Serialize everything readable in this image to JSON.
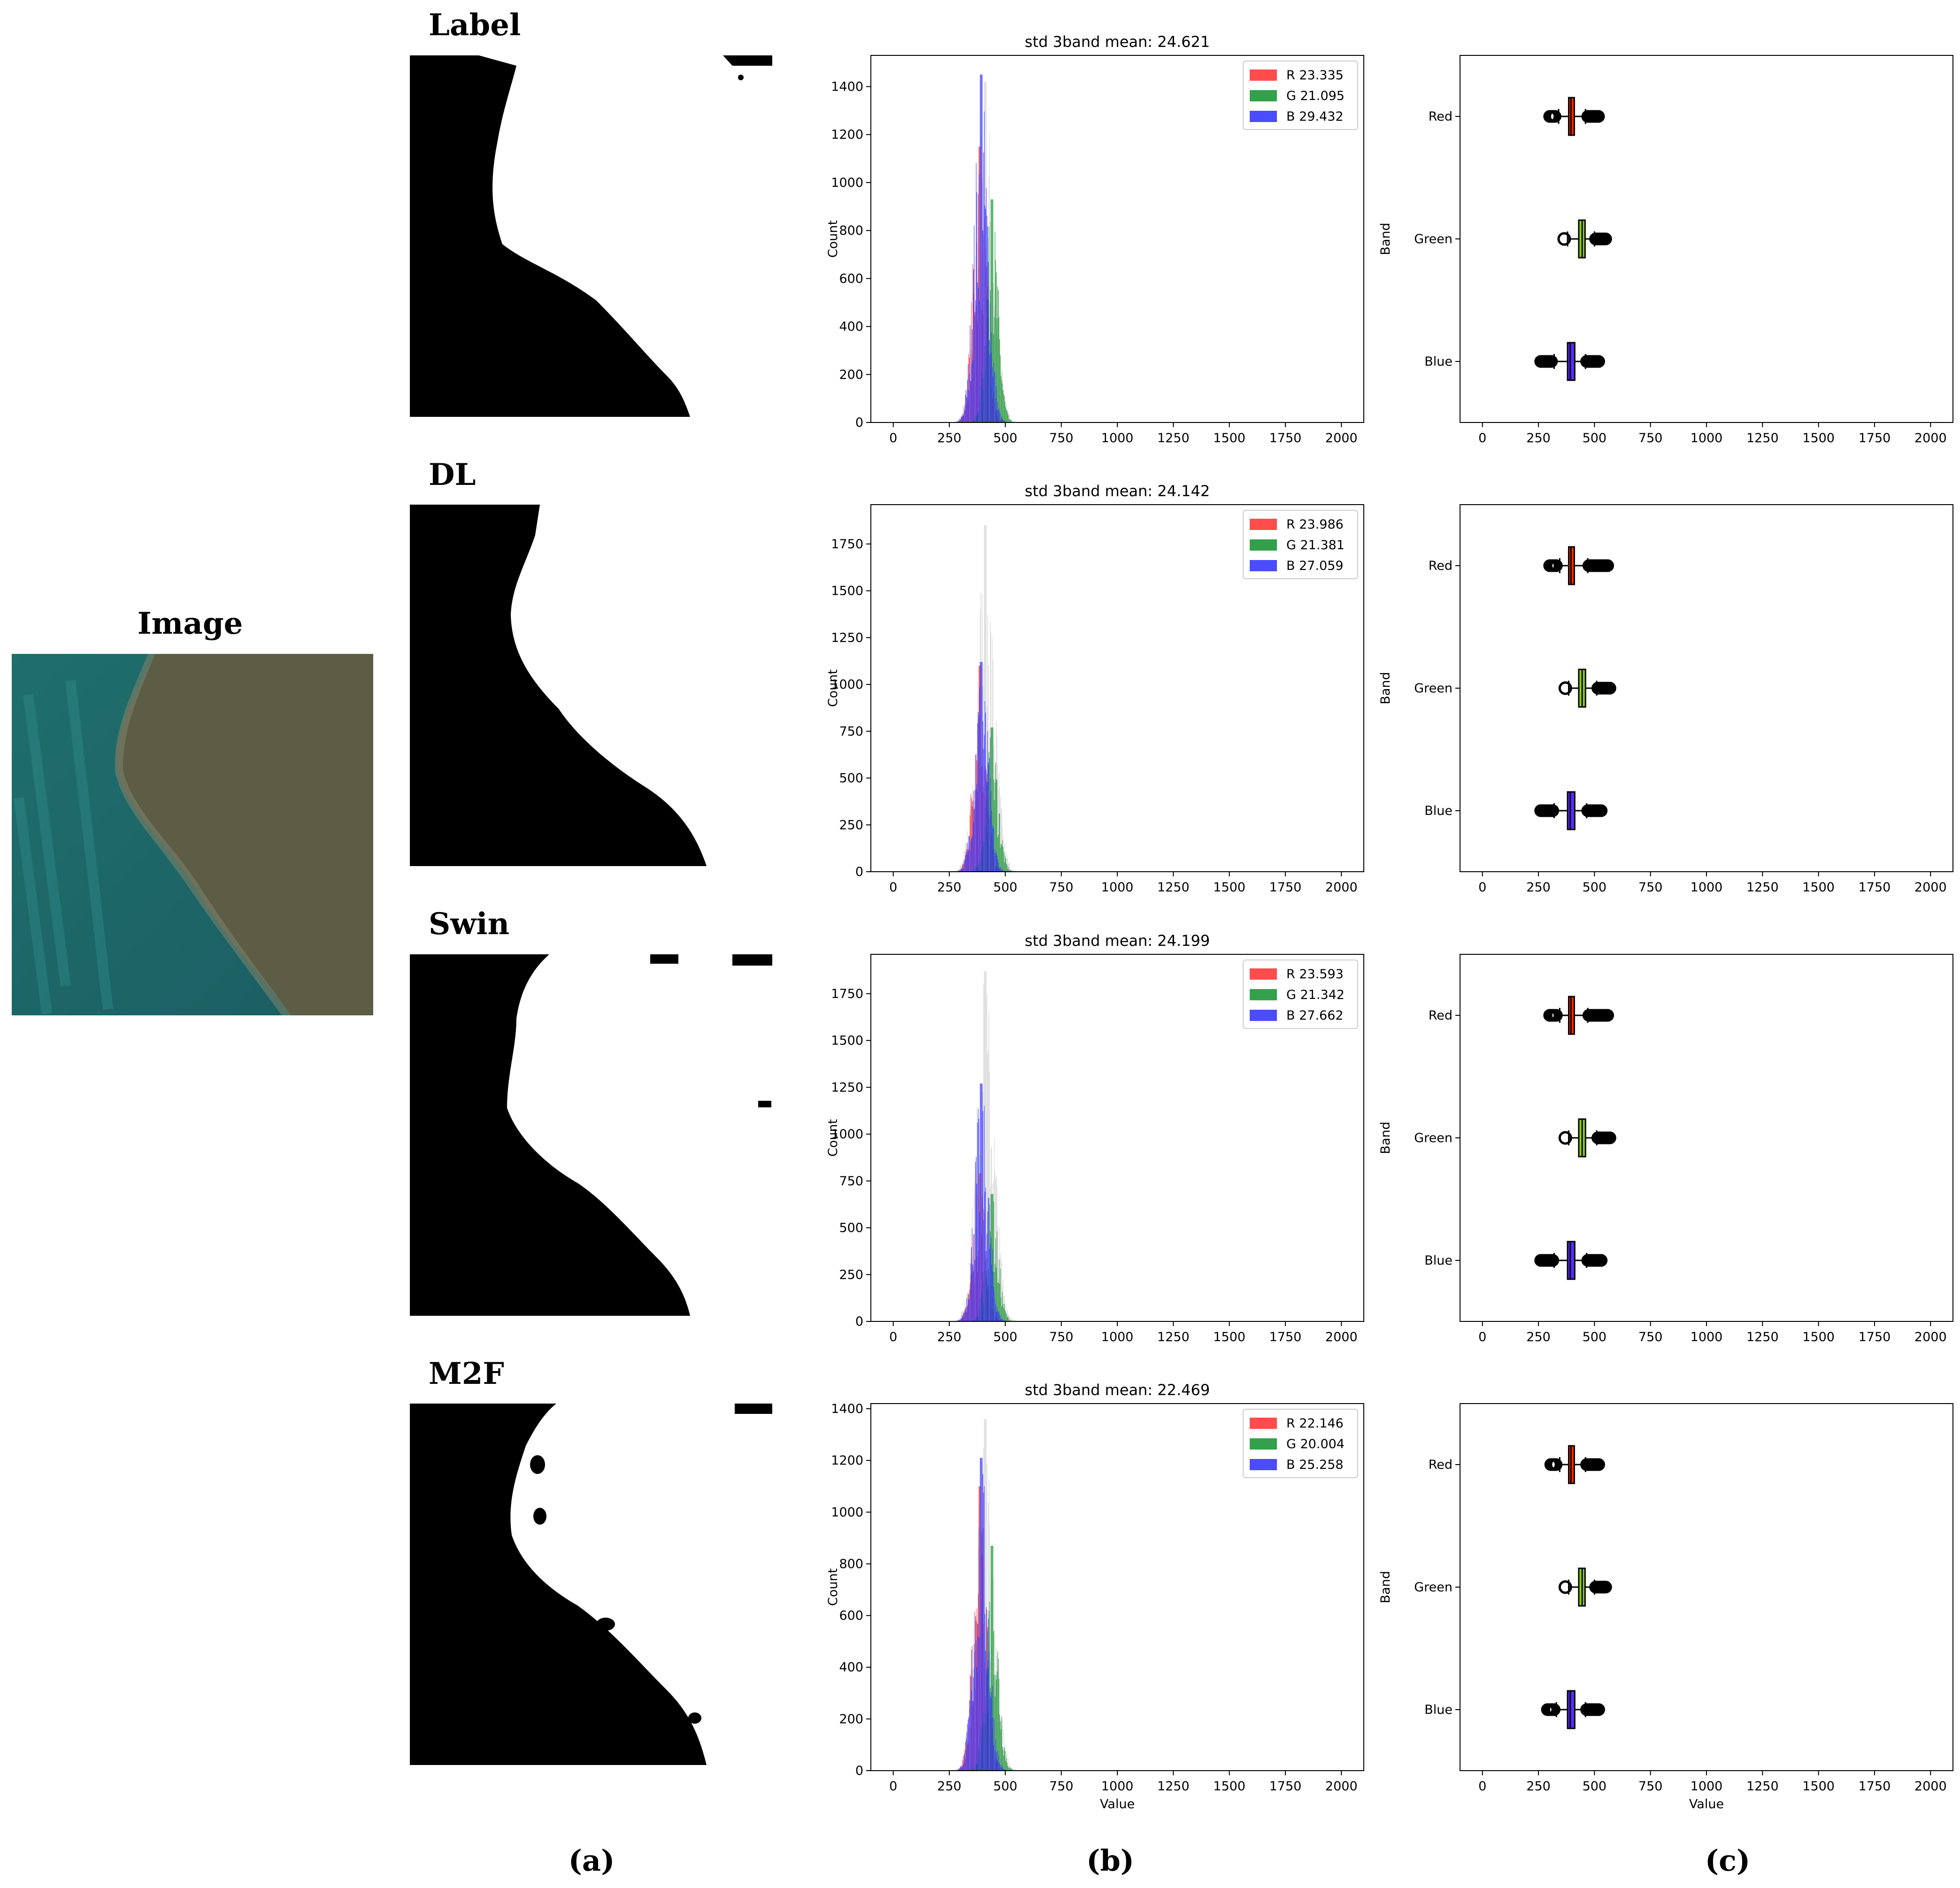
{
  "image_panel": {
    "title": "Image"
  },
  "captions": [
    "(a)",
    "(b)",
    "(c)"
  ],
  "colors": {
    "red": "#ff2020",
    "green": "#008a1e",
    "blue": "#1f1fff",
    "mask": "#000000",
    "box_red": "#ff2d00",
    "box_green": "#8fd400",
    "box_blue": "#5a2bff"
  },
  "chart_data": [
    {
      "type": "histogram",
      "row_label": "Label",
      "title": "std 3band mean: 24.621",
      "ylabel": "Count",
      "xlabel": "",
      "xlim": [
        -100,
        2100
      ],
      "xticks": [
        0,
        250,
        500,
        750,
        1000,
        1250,
        1500,
        1750,
        2000
      ],
      "ylim": [
        0,
        1530
      ],
      "yticks": [
        0,
        200,
        400,
        600,
        800,
        1000,
        1200,
        1400
      ],
      "peaks": {
        "gray": 1420,
        "red": 1150,
        "green": 930,
        "blue": 1450
      },
      "legend": [
        {
          "key": "R",
          "value": "23.335",
          "color": "red"
        },
        {
          "key": "G",
          "value": "21.095",
          "color": "green"
        },
        {
          "key": "B",
          "value": "29.432",
          "color": "blue"
        }
      ],
      "boxplot": {
        "ylabel": "Band",
        "xlabel": "",
        "bands": [
          {
            "name": "Red",
            "q1": 385,
            "median": 395,
            "q3": 410,
            "whislo": 340,
            "whishi": 460,
            "fliers_lo": [
              300,
              325
            ],
            "fliers_hi": [
              470,
              520
            ],
            "color": "box_red"
          },
          {
            "name": "Green",
            "q1": 430,
            "median": 445,
            "q3": 458,
            "whislo": 380,
            "whishi": 500,
            "fliers_lo": [
              365
            ],
            "fliers_hi": [
              505,
              550
            ],
            "color": "box_green"
          },
          {
            "name": "Blue",
            "q1": 380,
            "median": 392,
            "q3": 412,
            "whislo": 320,
            "whishi": 460,
            "fliers_lo": [
              260,
              310
            ],
            "fliers_hi": [
              465,
              520
            ],
            "color": "box_blue"
          }
        ]
      }
    },
    {
      "type": "histogram",
      "row_label": "DL",
      "title": "std 3band mean: 24.142",
      "ylabel": "Count",
      "xlabel": "",
      "xlim": [
        -100,
        2100
      ],
      "xticks": [
        0,
        250,
        500,
        750,
        1000,
        1250,
        1500,
        1750,
        2000
      ],
      "ylim": [
        0,
        1960
      ],
      "yticks": [
        0,
        250,
        500,
        750,
        1000,
        1250,
        1500,
        1750
      ],
      "peaks": {
        "gray": 1850,
        "red": 1100,
        "green": 770,
        "blue": 1120
      },
      "legend": [
        {
          "key": "R",
          "value": "23.986",
          "color": "red"
        },
        {
          "key": "G",
          "value": "21.381",
          "color": "green"
        },
        {
          "key": "B",
          "value": "27.059",
          "color": "blue"
        }
      ],
      "boxplot": {
        "ylabel": "Band",
        "xlabel": "",
        "bands": [
          {
            "name": "Red",
            "q1": 385,
            "median": 395,
            "q3": 410,
            "whislo": 345,
            "whishi": 470,
            "fliers_lo": [
              300,
              330
            ],
            "fliers_hi": [
              475,
              560
            ],
            "color": "box_red"
          },
          {
            "name": "Green",
            "q1": 430,
            "median": 445,
            "q3": 460,
            "whislo": 385,
            "whishi": 510,
            "fliers_lo": [
              370
            ],
            "fliers_hi": [
              515,
              570
            ],
            "color": "box_green"
          },
          {
            "name": "Blue",
            "q1": 380,
            "median": 392,
            "q3": 412,
            "whislo": 320,
            "whishi": 465,
            "fliers_lo": [
              260,
              315
            ],
            "fliers_hi": [
              470,
              530
            ],
            "color": "box_blue"
          }
        ]
      }
    },
    {
      "type": "histogram",
      "row_label": "Swin",
      "title": "std 3band mean: 24.199",
      "ylabel": "Count",
      "xlabel": "",
      "xlim": [
        -100,
        2100
      ],
      "xticks": [
        0,
        250,
        500,
        750,
        1000,
        1250,
        1500,
        1750,
        2000
      ],
      "ylim": [
        0,
        1960
      ],
      "yticks": [
        0,
        250,
        500,
        750,
        1000,
        1250,
        1500,
        1750
      ],
      "peaks": {
        "gray": 1870,
        "red": 790,
        "green": 680,
        "blue": 1270
      },
      "legend": [
        {
          "key": "R",
          "value": "23.593",
          "color": "red"
        },
        {
          "key": "G",
          "value": "21.342",
          "color": "green"
        },
        {
          "key": "B",
          "value": "27.662",
          "color": "blue"
        }
      ],
      "boxplot": {
        "ylabel": "Band",
        "xlabel": "",
        "bands": [
          {
            "name": "Red",
            "q1": 385,
            "median": 395,
            "q3": 410,
            "whislo": 345,
            "whishi": 470,
            "fliers_lo": [
              300,
              330
            ],
            "fliers_hi": [
              475,
              560
            ],
            "color": "box_red"
          },
          {
            "name": "Green",
            "q1": 430,
            "median": 445,
            "q3": 460,
            "whislo": 385,
            "whishi": 510,
            "fliers_lo": [
              370
            ],
            "fliers_hi": [
              515,
              570
            ],
            "color": "box_green"
          },
          {
            "name": "Blue",
            "q1": 380,
            "median": 392,
            "q3": 412,
            "whislo": 320,
            "whishi": 465,
            "fliers_lo": [
              260,
              315
            ],
            "fliers_hi": [
              470,
              530
            ],
            "color": "box_blue"
          }
        ]
      }
    },
    {
      "type": "histogram",
      "row_label": "M2F",
      "title": "std 3band mean: 22.469",
      "ylabel": "Count",
      "xlabel": "Value",
      "xlim": [
        -100,
        2100
      ],
      "xticks": [
        0,
        250,
        500,
        750,
        1000,
        1250,
        1500,
        1750,
        2000
      ],
      "ylim": [
        0,
        1420
      ],
      "yticks": [
        0,
        200,
        400,
        600,
        800,
        1000,
        1200,
        1400
      ],
      "peaks": {
        "gray": 1360,
        "red": 1100,
        "green": 870,
        "blue": 1210
      },
      "legend": [
        {
          "key": "R",
          "value": "22.146",
          "color": "red"
        },
        {
          "key": "G",
          "value": "20.004",
          "color": "green"
        },
        {
          "key": "B",
          "value": "25.258",
          "color": "blue"
        }
      ],
      "boxplot": {
        "ylabel": "Band",
        "xlabel": "Value",
        "bands": [
          {
            "name": "Red",
            "q1": 385,
            "median": 395,
            "q3": 410,
            "whislo": 345,
            "whishi": 460,
            "fliers_lo": [
              305,
              330
            ],
            "fliers_hi": [
              465,
              520
            ],
            "color": "box_red"
          },
          {
            "name": "Green",
            "q1": 430,
            "median": 445,
            "q3": 458,
            "whislo": 385,
            "whishi": 500,
            "fliers_lo": [
              370
            ],
            "fliers_hi": [
              505,
              550
            ],
            "color": "box_green"
          },
          {
            "name": "Blue",
            "q1": 380,
            "median": 392,
            "q3": 412,
            "whislo": 330,
            "whishi": 460,
            "fliers_lo": [
              290,
              320
            ],
            "fliers_hi": [
              465,
              520
            ],
            "color": "box_blue"
          }
        ]
      }
    }
  ]
}
